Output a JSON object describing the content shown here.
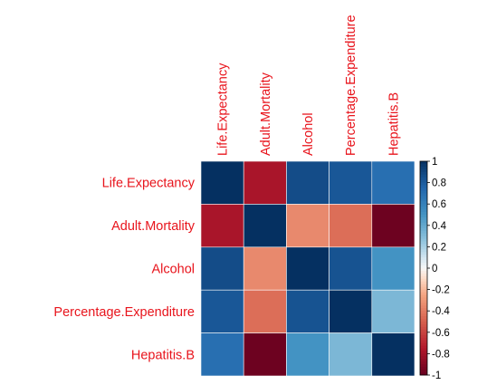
{
  "chart_data": {
    "type": "heatmap",
    "title": "",
    "variables": [
      "Life.Expectancy",
      "Adult.Mortality",
      "Alcohol",
      "Percentage.Expenditure",
      "Hepatitis.B"
    ],
    "matrix": [
      [
        1.0,
        -0.78,
        0.87,
        0.82,
        0.7
      ],
      [
        -0.78,
        1.0,
        -0.35,
        -0.45,
        -0.98
      ],
      [
        0.87,
        -0.35,
        1.0,
        0.84,
        0.5
      ],
      [
        0.82,
        -0.45,
        0.84,
        1.0,
        0.32
      ],
      [
        0.7,
        -0.98,
        0.5,
        0.32,
        1.0
      ]
    ],
    "color_scale": {
      "range": [
        -1,
        1
      ],
      "low_color": "#67001f",
      "mid_color": "#f7f7f7",
      "high_color": "#053061",
      "ticks": [
        "1",
        "0.8",
        "0.6",
        "0.4",
        "0.2",
        "0",
        "-0.2",
        "-0.4",
        "-0.6",
        "-0.8",
        "-1"
      ]
    },
    "label_color": "#e8141c"
  }
}
